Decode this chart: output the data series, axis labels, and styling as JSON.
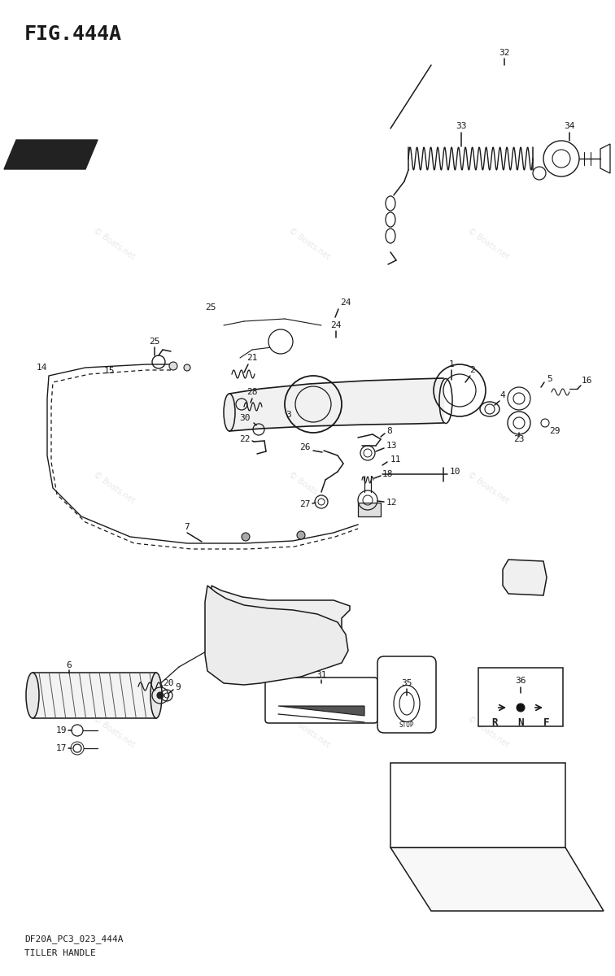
{
  "title": "FIG.444A",
  "subtitle1": "DF20A_PC3_023_444A",
  "subtitle2": "TILLER HANDLE",
  "bg_color": "#ffffff",
  "fig_width": 7.56,
  "fig_height": 12.0
}
